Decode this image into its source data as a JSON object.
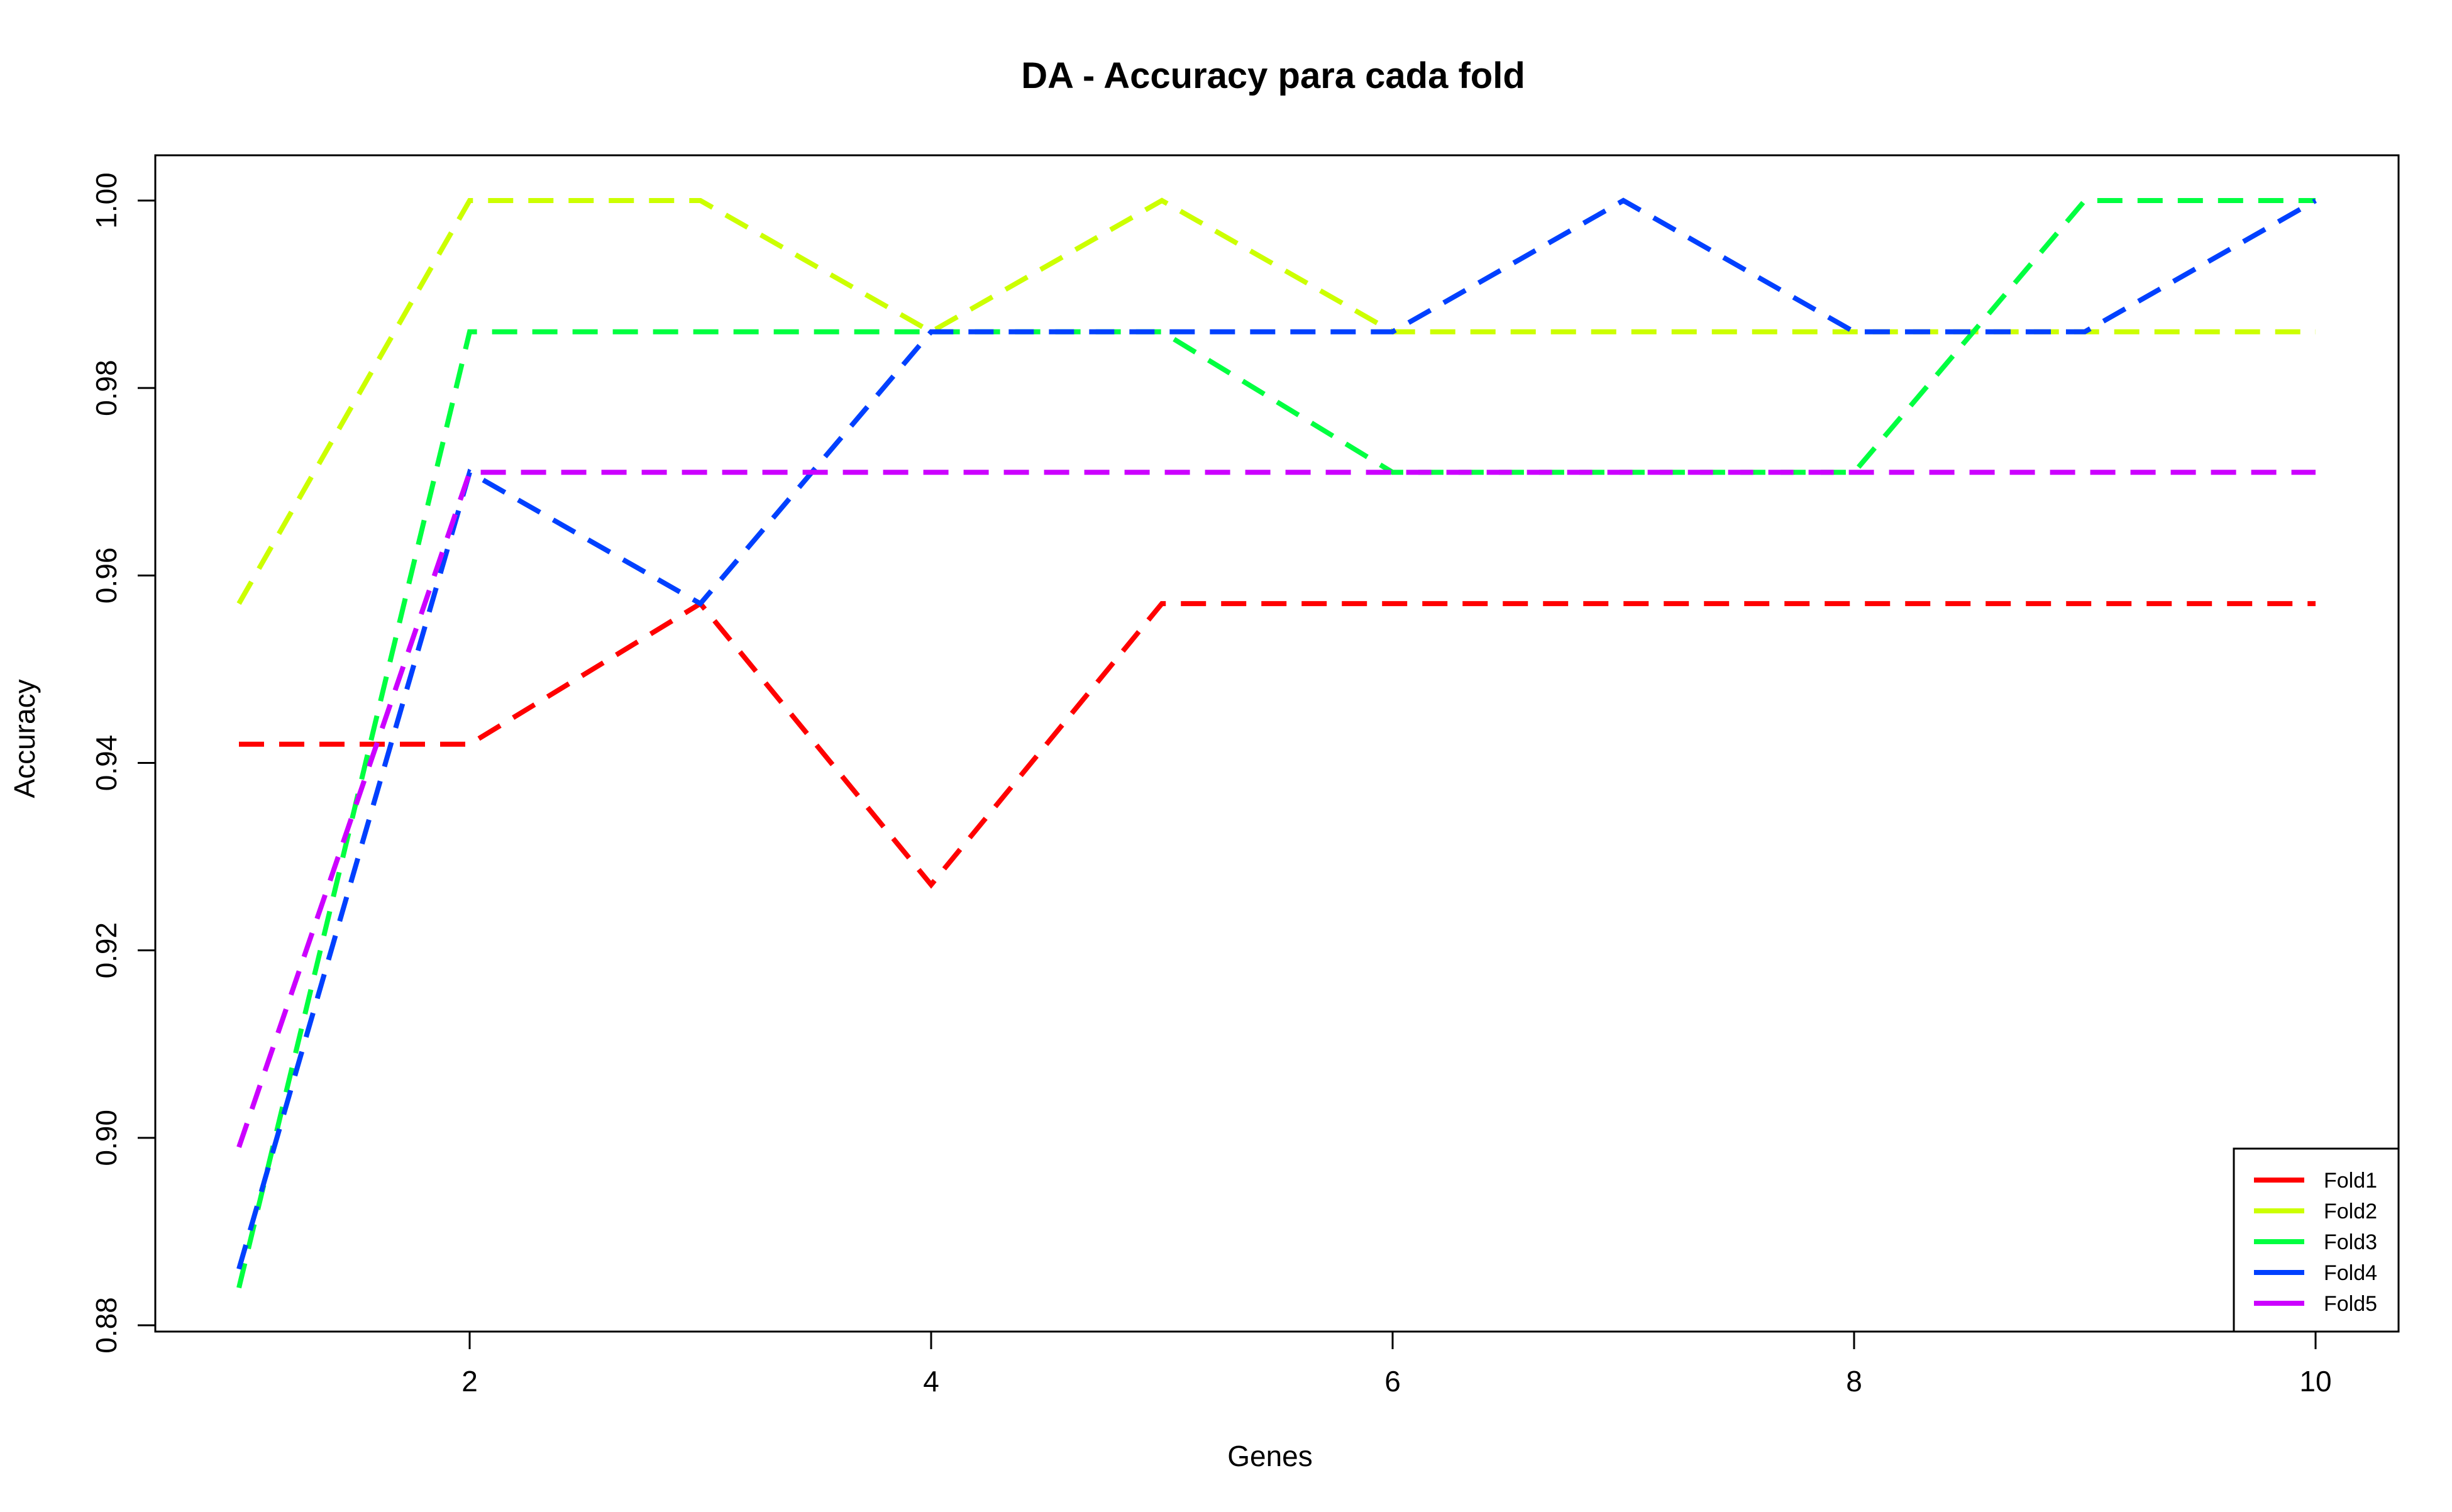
{
  "chart_data": {
    "type": "line",
    "title": "DA - Accuracy para cada fold",
    "xlabel": "Genes",
    "ylabel": "Accuracy",
    "x": [
      1,
      2,
      3,
      4,
      5,
      6,
      7,
      8,
      9,
      10
    ],
    "xlim": [
      1,
      10
    ],
    "ylim": [
      0.88,
      1.0
    ],
    "x_ticks": [
      2,
      4,
      6,
      8,
      10
    ],
    "y_ticks": [
      0.88,
      0.9,
      0.92,
      0.94,
      0.96,
      0.98,
      1.0
    ],
    "x_tick_labels": [
      "2",
      "4",
      "6",
      "8",
      "10"
    ],
    "y_tick_labels": [
      "0.88",
      "0.90",
      "0.92",
      "0.94",
      "0.96",
      "0.98",
      "1.00"
    ],
    "line_style": "dashed",
    "grid": false,
    "legend_position": "bottom-right",
    "series": [
      {
        "name": "Fold1",
        "color": "#FF0000",
        "values": [
          0.942,
          0.942,
          0.957,
          0.927,
          0.957,
          0.957,
          0.957,
          0.957,
          0.957,
          0.957
        ]
      },
      {
        "name": "Fold2",
        "color": "#CCFF00",
        "values": [
          0.957,
          1.0,
          1.0,
          0.986,
          1.0,
          0.986,
          0.986,
          0.986,
          0.986,
          0.986
        ]
      },
      {
        "name": "Fold3",
        "color": "#00FF40",
        "values": [
          0.884,
          0.986,
          0.986,
          0.986,
          0.986,
          0.971,
          0.971,
          0.971,
          1.0,
          1.0
        ]
      },
      {
        "name": "Fold4",
        "color": "#0040FF",
        "values": [
          0.886,
          0.971,
          0.957,
          0.986,
          0.986,
          0.986,
          1.0,
          0.986,
          0.986,
          1.0
        ]
      },
      {
        "name": "Fold5",
        "color": "#CC00FF",
        "values": [
          0.899,
          0.971,
          0.971,
          0.971,
          0.971,
          0.971,
          0.971,
          0.971,
          0.971,
          0.971
        ]
      }
    ]
  }
}
